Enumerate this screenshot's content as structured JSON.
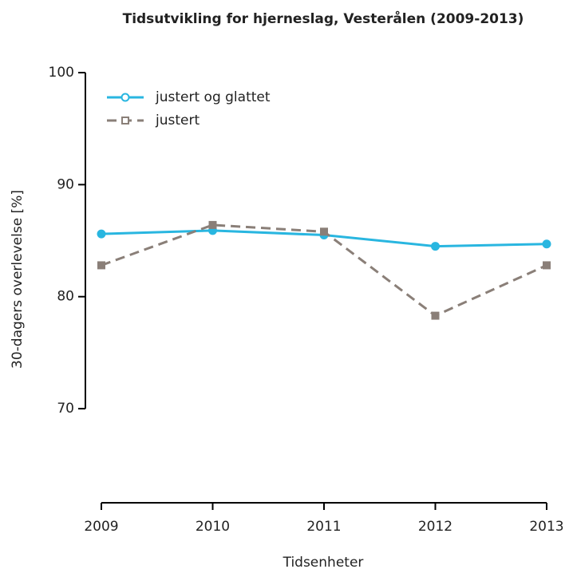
{
  "chart_data": {
    "type": "line",
    "title": "Tidsutvikling for hjerneslag, Vesterålen (2009-2013)",
    "xlabel": "Tidsenheter",
    "ylabel": "30-dagers overlevelse [%]",
    "x": [
      2009,
      2010,
      2011,
      2012,
      2013
    ],
    "xlim": [
      2009,
      2013
    ],
    "xticks": [
      2009,
      2010,
      2011,
      2012,
      2013
    ],
    "ylim": [
      61.6,
      100
    ],
    "yticks": [
      70,
      80,
      90,
      100
    ],
    "legend": "top-left",
    "series": [
      {
        "name": "justert og glattet",
        "color": "#29b6e0",
        "marker": "circle",
        "dash": false,
        "values": [
          85.6,
          85.9,
          85.5,
          84.5,
          84.7
        ]
      },
      {
        "name": "justert",
        "color": "#8a7f78",
        "marker": "square",
        "dash": true,
        "values": [
          82.8,
          86.4,
          85.8,
          78.3,
          82.8
        ]
      }
    ]
  }
}
